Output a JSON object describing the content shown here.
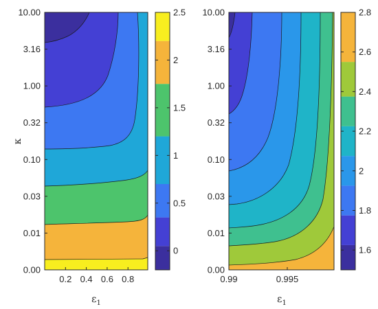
{
  "chart_data": [
    {
      "type": "heatmap",
      "subtype": "filled-contour",
      "xlabel": "ε",
      "xlabel_subscript": "1",
      "ylabel": "κ",
      "x_ticks": [
        {
          "value": 0.2,
          "label": "0.2"
        },
        {
          "value": 0.4,
          "label": "0.4"
        },
        {
          "value": 0.6,
          "label": "0.6"
        },
        {
          "value": 0.8,
          "label": "0.8"
        }
      ],
      "xlim": [
        0.0,
        0.99
      ],
      "y_ticks": [
        "0.00",
        "0.01",
        "0.03",
        "0.10",
        "0.32",
        "1.00",
        "3.16",
        "10.00"
      ],
      "y_scale": "log",
      "colorbar": {
        "range": [
          -0.2,
          2.5
        ],
        "ticks": [
          {
            "value": 0,
            "label": "0"
          },
          {
            "value": 0.5,
            "label": "0.5"
          },
          {
            "value": 1,
            "label": "1"
          },
          {
            "value": 1.5,
            "label": "1.5"
          },
          {
            "value": 2,
            "label": "2"
          },
          {
            "value": 2.5,
            "label": "2.5"
          }
        ]
      },
      "bands": [
        {
          "level": -0.1,
          "color": "#3b2f9e"
        },
        {
          "level": 0.2,
          "color": "#4440d4"
        },
        {
          "level": 0.5,
          "color": "#3d78f2"
        },
        {
          "level": 0.9,
          "color": "#1fa7d8"
        },
        {
          "level": 1.5,
          "color": "#4dc46c"
        },
        {
          "level": 2.0,
          "color": "#f5b43b"
        },
        {
          "level": 2.4,
          "color": "#f8ee1f"
        }
      ]
    },
    {
      "type": "heatmap",
      "subtype": "filled-contour",
      "xlabel": "ε",
      "xlabel_subscript": "1",
      "ylabel": "",
      "x_ticks": [
        {
          "value": 0.99,
          "label": "0.99"
        },
        {
          "value": 0.995,
          "label": "0.995"
        }
      ],
      "xlim": [
        0.99,
        0.999
      ],
      "y_ticks": [
        "0.00",
        "0.01",
        "0.03",
        "0.10",
        "0.32",
        "1.00",
        "3.16",
        "10.00"
      ],
      "y_scale": "log",
      "colorbar": {
        "range": [
          1.5,
          2.8
        ],
        "ticks": [
          {
            "value": 1.6,
            "label": "1.6"
          },
          {
            "value": 1.8,
            "label": "1.8"
          },
          {
            "value": 2.0,
            "label": "2"
          },
          {
            "value": 2.2,
            "label": "2.2"
          },
          {
            "value": 2.4,
            "label": "2.4"
          },
          {
            "value": 2.6,
            "label": "2.6"
          },
          {
            "value": 2.8,
            "label": "2.8"
          }
        ]
      },
      "bands": [
        {
          "level": 1.55,
          "color": "#3b2f9e"
        },
        {
          "level": 1.7,
          "color": "#4440d4"
        },
        {
          "level": 1.85,
          "color": "#3d78f2"
        },
        {
          "level": 2.0,
          "color": "#2a97ea"
        },
        {
          "level": 2.15,
          "color": "#1fb4c8"
        },
        {
          "level": 2.3,
          "color": "#3fc08f"
        },
        {
          "level": 2.45,
          "color": "#9fc93a"
        },
        {
          "level": 2.65,
          "color": "#f5b43b"
        }
      ]
    }
  ]
}
